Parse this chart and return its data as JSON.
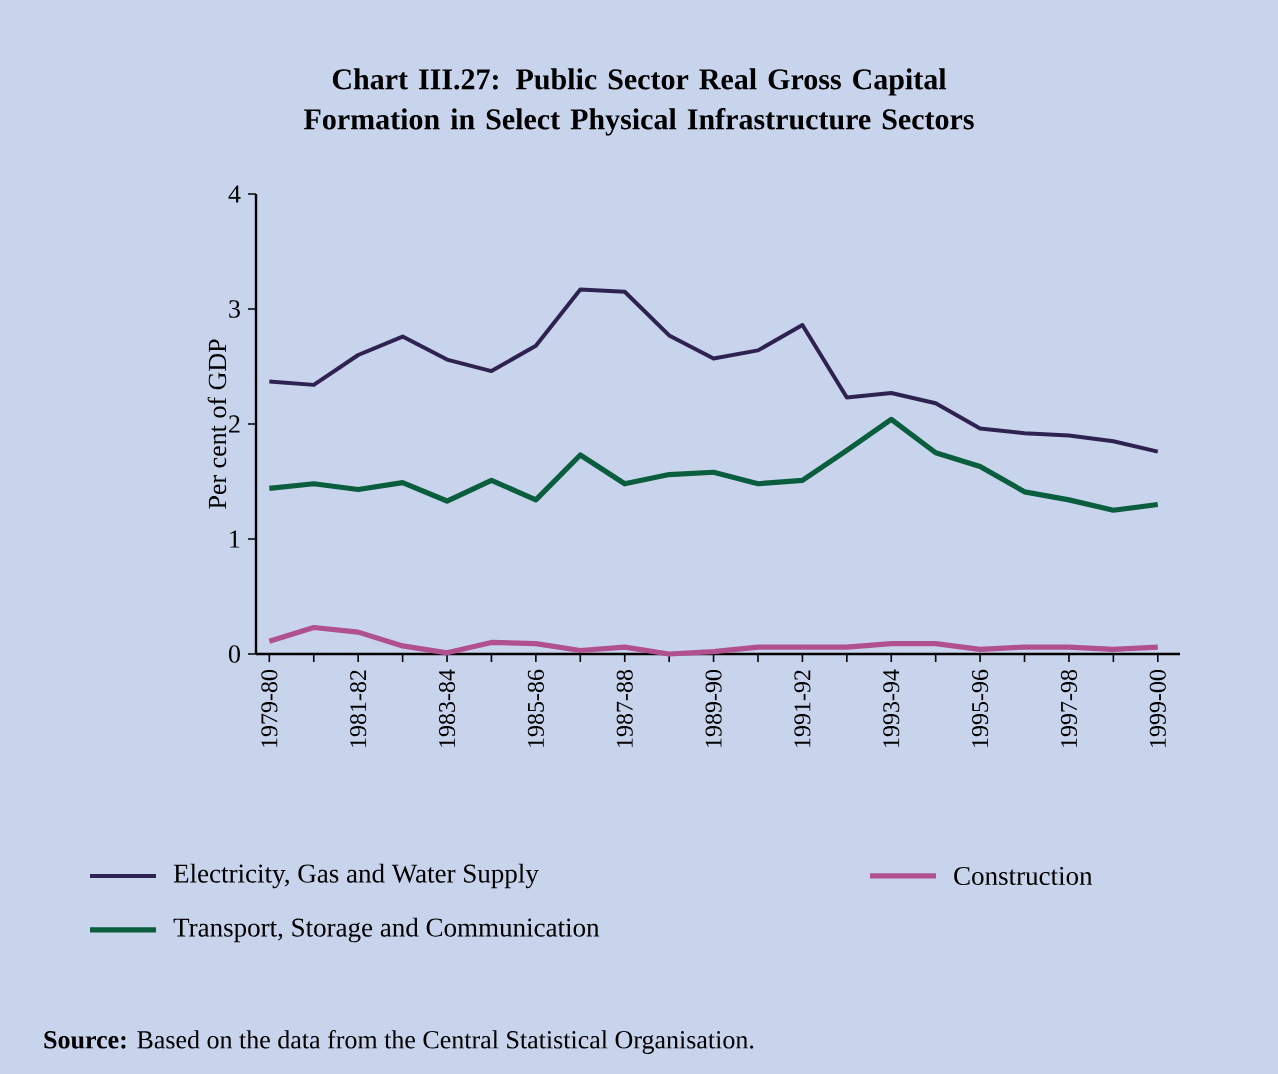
{
  "chart_data": {
    "type": "line",
    "title": "Chart III.27: Public Sector Real Gross Capital Formation in Select Physical Infrastructure Sectors",
    "ylabel": "Per cent of GDP",
    "categories": [
      "1979-80",
      null,
      "1981-82",
      null,
      "1983-84",
      null,
      "1985-86",
      null,
      "1987-88",
      null,
      "1989-90",
      null,
      "1991-92",
      null,
      "1993-94",
      null,
      "1995-96",
      null,
      "1997-98",
      null,
      "1999-00"
    ],
    "series": [
      {
        "name": "Electricity, Gas and Water Supply",
        "color": "#2e2350",
        "values": [
          2.37,
          2.34,
          2.6,
          2.76,
          2.56,
          2.46,
          2.68,
          3.17,
          3.15,
          2.77,
          2.57,
          2.64,
          2.86,
          2.23,
          2.27,
          2.18,
          1.96,
          1.92,
          1.9,
          1.85,
          1.76
        ]
      },
      {
        "name": "Transport, Storage and Communication",
        "color": "#0a5e3e",
        "values": [
          1.44,
          1.48,
          1.43,
          1.49,
          1.33,
          1.51,
          1.34,
          1.73,
          1.48,
          1.56,
          1.58,
          1.48,
          1.51,
          1.77,
          2.04,
          1.75,
          1.63,
          1.41,
          1.34,
          1.25,
          1.3
        ]
      },
      {
        "name": "Construction",
        "color": "#b0508e",
        "values": [
          0.11,
          0.23,
          0.19,
          0.07,
          0.01,
          0.1,
          0.09,
          0.03,
          0.06,
          0.0,
          0.02,
          0.06,
          0.06,
          0.06,
          0.09,
          0.09,
          0.04,
          0.06,
          0.06,
          0.04,
          0.06
        ]
      }
    ],
    "ylim": [
      0,
      4
    ],
    "yticks": [
      0,
      1,
      2,
      3,
      4
    ],
    "legend": "bottom",
    "marker": "none",
    "line_style": "solid",
    "grid": false,
    "annotations": [
      "**Source:** Based on the data from the Central Statistical Organisation."
    ]
  }
}
